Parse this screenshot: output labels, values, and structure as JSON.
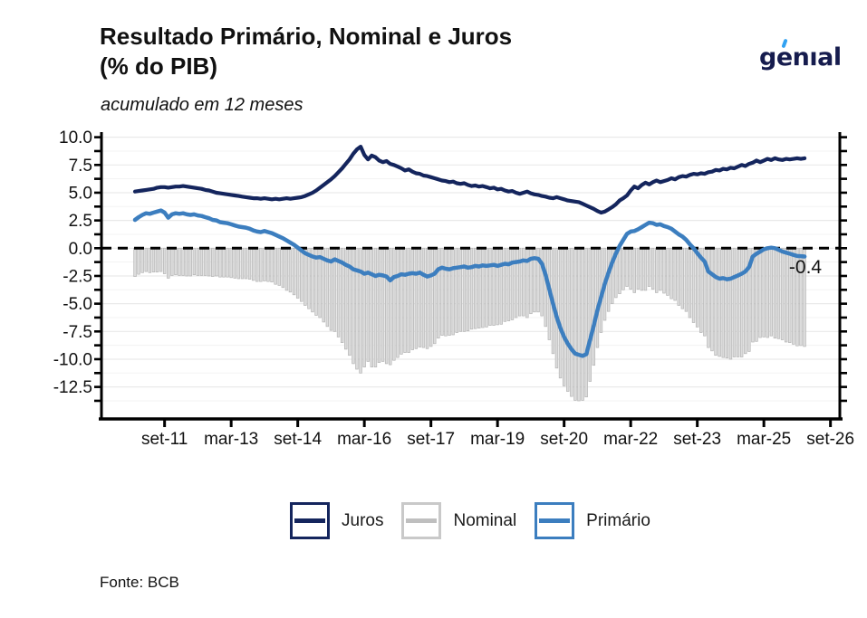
{
  "header": {
    "title_line1": "Resultado Primário, Nominal e Juros",
    "title_line2": "(% do PIB)",
    "subtitle": "acumulado em 12 meses"
  },
  "logo": {
    "p1": "g",
    "p2": "e",
    "p3": "nıal"
  },
  "source": "Fonte: BCB",
  "legend": [
    {
      "label": "Juros",
      "box_border": "#14255d",
      "line_color": "#14255d"
    },
    {
      "label": "Nominal",
      "box_border": "#c9c9c9",
      "line_color": "#bfbfbf"
    },
    {
      "label": "Primário",
      "box_border": "#3c7ebf",
      "line_color": "#3c7ebf"
    }
  ],
  "chart_data": {
    "type": "line+bar",
    "title": "Resultado Primário, Nominal e Juros (% do PIB)",
    "subtitle": "acumulado em 12 meses",
    "x_start": "2011-01",
    "x_frequency": "monthly",
    "x_ticks": {
      "labels": [
        "set-11",
        "mar-13",
        "set-14",
        "mar-16",
        "set-17",
        "mar-19",
        "set-20",
        "mar-22",
        "set-23",
        "mar-25",
        "set-26"
      ],
      "month_index": [
        8,
        26,
        44,
        62,
        80,
        98,
        116,
        134,
        152,
        170,
        188
      ]
    },
    "y_ticks": {
      "labels": [
        "10.0",
        "7.5",
        "5.0",
        "2.5",
        "0.0",
        "-2.5",
        "-5.0",
        "-7.5",
        "-10.0",
        "-12.5"
      ],
      "values": [
        10,
        7.5,
        5,
        2.5,
        0,
        -2.5,
        -5,
        -7.5,
        -10,
        -12.5
      ]
    },
    "ylim": [
      -15.4,
      10.5
    ],
    "grid": true,
    "zero_line": {
      "style": "dashed",
      "color": "#000000"
    },
    "legend_position": "bottom",
    "annotation": {
      "text": "-0.4",
      "month_index": 180,
      "value": -0.4
    },
    "style": {
      "grid_major": "#e9e9e9",
      "grid_minor": "#f3f3f3"
    },
    "series": [
      {
        "name": "Juros",
        "type": "line",
        "color": "#14255d",
        "width": 4.2,
        "values": [
          5.1,
          5.15,
          5.2,
          5.25,
          5.3,
          5.35,
          5.45,
          5.5,
          5.5,
          5.45,
          5.5,
          5.55,
          5.55,
          5.6,
          5.55,
          5.5,
          5.45,
          5.4,
          5.35,
          5.25,
          5.2,
          5.1,
          5.0,
          4.95,
          4.9,
          4.85,
          4.8,
          4.75,
          4.7,
          4.65,
          4.6,
          4.55,
          4.5,
          4.5,
          4.45,
          4.5,
          4.45,
          4.4,
          4.45,
          4.4,
          4.45,
          4.5,
          4.45,
          4.5,
          4.55,
          4.6,
          4.7,
          4.85,
          5.0,
          5.2,
          5.45,
          5.7,
          5.95,
          6.2,
          6.5,
          6.85,
          7.2,
          7.6,
          8.0,
          8.5,
          8.9,
          9.15,
          8.4,
          8.0,
          8.35,
          8.2,
          7.9,
          7.75,
          7.85,
          7.6,
          7.5,
          7.35,
          7.2,
          7.0,
          7.1,
          6.9,
          6.75,
          6.7,
          6.55,
          6.5,
          6.4,
          6.3,
          6.2,
          6.1,
          6.05,
          5.95,
          6.0,
          5.85,
          5.8,
          5.85,
          5.7,
          5.6,
          5.65,
          5.55,
          5.6,
          5.5,
          5.4,
          5.45,
          5.3,
          5.35,
          5.2,
          5.1,
          5.15,
          5.0,
          4.9,
          5.0,
          5.1,
          4.95,
          4.85,
          4.8,
          4.7,
          4.65,
          4.55,
          4.5,
          4.6,
          4.5,
          4.4,
          4.3,
          4.25,
          4.2,
          4.15,
          4.0,
          3.85,
          3.7,
          3.55,
          3.35,
          3.2,
          3.3,
          3.5,
          3.7,
          3.95,
          4.3,
          4.5,
          4.75,
          5.2,
          5.55,
          5.4,
          5.7,
          5.9,
          5.75,
          5.95,
          6.1,
          5.95,
          6.05,
          6.15,
          6.3,
          6.2,
          6.4,
          6.5,
          6.45,
          6.6,
          6.7,
          6.65,
          6.75,
          6.7,
          6.85,
          6.9,
          7.05,
          7.0,
          7.15,
          7.1,
          7.25,
          7.2,
          7.35,
          7.5,
          7.4,
          7.6,
          7.7,
          7.9,
          7.75,
          7.9,
          8.05,
          7.95,
          8.1,
          8.0,
          7.95,
          8.05,
          8.0,
          8.05,
          8.1,
          8.05,
          8.1
        ]
      },
      {
        "name": "Primário",
        "type": "line",
        "color": "#3c7ebf",
        "width": 4.5,
        "values": [
          2.55,
          2.8,
          3.0,
          3.15,
          3.1,
          3.2,
          3.3,
          3.4,
          3.2,
          2.75,
          3.05,
          3.15,
          3.1,
          3.15,
          3.05,
          3.0,
          3.05,
          2.95,
          2.9,
          2.8,
          2.7,
          2.55,
          2.5,
          2.35,
          2.3,
          2.25,
          2.15,
          2.05,
          1.95,
          1.9,
          1.85,
          1.75,
          1.6,
          1.5,
          1.45,
          1.55,
          1.45,
          1.35,
          1.2,
          1.05,
          0.9,
          0.7,
          0.5,
          0.3,
          0.05,
          -0.2,
          -0.45,
          -0.6,
          -0.75,
          -0.85,
          -0.8,
          -0.95,
          -1.1,
          -1.2,
          -1.0,
          -1.15,
          -1.3,
          -1.5,
          -1.65,
          -1.9,
          -2.0,
          -2.1,
          -2.3,
          -2.2,
          -2.35,
          -2.5,
          -2.4,
          -2.45,
          -2.55,
          -2.9,
          -2.6,
          -2.5,
          -2.35,
          -2.4,
          -2.3,
          -2.25,
          -2.3,
          -2.2,
          -2.4,
          -2.55,
          -2.45,
          -2.3,
          -1.9,
          -1.75,
          -1.85,
          -1.9,
          -1.8,
          -1.75,
          -1.7,
          -1.65,
          -1.75,
          -1.7,
          -1.6,
          -1.65,
          -1.55,
          -1.6,
          -1.55,
          -1.5,
          -1.6,
          -1.5,
          -1.4,
          -1.45,
          -1.3,
          -1.25,
          -1.2,
          -1.1,
          -1.15,
          -0.95,
          -0.9,
          -0.95,
          -1.4,
          -2.4,
          -3.7,
          -5.0,
          -6.2,
          -7.2,
          -8.0,
          -8.6,
          -9.1,
          -9.5,
          -9.6,
          -9.7,
          -9.55,
          -8.3,
          -7.0,
          -5.6,
          -4.4,
          -3.2,
          -2.2,
          -1.3,
          -0.5,
          0.2,
          0.75,
          1.3,
          1.5,
          1.55,
          1.7,
          1.9,
          2.1,
          2.3,
          2.25,
          2.1,
          2.15,
          2.0,
          1.9,
          1.75,
          1.5,
          1.25,
          1.05,
          0.75,
          0.35,
          0.0,
          -0.45,
          -0.85,
          -1.2,
          -2.1,
          -2.35,
          -2.6,
          -2.75,
          -2.7,
          -2.8,
          -2.75,
          -2.6,
          -2.45,
          -2.3,
          -2.1,
          -1.7,
          -0.75,
          -0.5,
          -0.3,
          -0.1,
          0.0,
          0.05,
          0.0,
          -0.15,
          -0.3,
          -0.4,
          -0.5,
          -0.6,
          -0.7,
          -0.72,
          -0.75
        ]
      },
      {
        "name": "Nominal",
        "type": "bar",
        "fill": "#dcdcdc",
        "stroke": "#b3b3b3",
        "values": [
          -2.55,
          -2.35,
          -2.2,
          -2.1,
          -2.2,
          -2.15,
          -2.15,
          -2.1,
          -2.3,
          -2.7,
          -2.45,
          -2.4,
          -2.45,
          -2.45,
          -2.5,
          -2.5,
          -2.4,
          -2.45,
          -2.45,
          -2.45,
          -2.5,
          -2.55,
          -2.5,
          -2.6,
          -2.6,
          -2.6,
          -2.65,
          -2.7,
          -2.75,
          -2.75,
          -2.75,
          -2.8,
          -2.9,
          -3.0,
          -3.0,
          -2.95,
          -3.0,
          -3.05,
          -3.25,
          -3.35,
          -3.55,
          -3.8,
          -3.95,
          -4.2,
          -4.5,
          -4.8,
          -5.15,
          -5.45,
          -5.75,
          -6.05,
          -6.25,
          -6.65,
          -7.05,
          -7.4,
          -7.5,
          -8.0,
          -8.5,
          -9.1,
          -9.65,
          -10.4,
          -10.9,
          -11.25,
          -10.7,
          -10.2,
          -10.7,
          -10.7,
          -10.3,
          -10.2,
          -10.4,
          -10.5,
          -10.1,
          -9.85,
          -9.55,
          -9.4,
          -9.4,
          -9.15,
          -9.05,
          -8.9,
          -8.95,
          -9.05,
          -8.85,
          -8.6,
          -8.1,
          -7.85,
          -7.9,
          -7.85,
          -7.8,
          -7.6,
          -7.5,
          -7.5,
          -7.45,
          -7.3,
          -7.25,
          -7.2,
          -7.15,
          -7.1,
          -6.95,
          -6.95,
          -6.9,
          -6.85,
          -6.6,
          -6.55,
          -6.45,
          -6.25,
          -6.1,
          -6.1,
          -6.25,
          -5.9,
          -5.75,
          -5.75,
          -6.1,
          -7.05,
          -8.25,
          -9.5,
          -10.8,
          -11.7,
          -12.4,
          -12.9,
          -13.35,
          -13.7,
          -13.75,
          -13.7,
          -13.4,
          -12.0,
          -10.55,
          -8.95,
          -7.6,
          -6.5,
          -5.7,
          -5.0,
          -4.45,
          -4.1,
          -3.75,
          -3.45,
          -3.7,
          -4.0,
          -3.7,
          -3.8,
          -3.8,
          -3.45,
          -3.7,
          -4.0,
          -3.8,
          -4.05,
          -4.25,
          -4.55,
          -4.7,
          -5.15,
          -5.45,
          -5.7,
          -6.25,
          -6.7,
          -7.1,
          -7.6,
          -7.9,
          -8.95,
          -9.25,
          -9.65,
          -9.75,
          -9.85,
          -9.9,
          -10.0,
          -9.8,
          -9.8,
          -9.8,
          -9.5,
          -9.3,
          -8.45,
          -8.4,
          -8.05,
          -8.0,
          -8.05,
          -7.9,
          -8.1,
          -8.15,
          -8.25,
          -8.45,
          -8.5,
          -8.65,
          -8.8,
          -8.77,
          -8.85
        ]
      }
    ]
  }
}
